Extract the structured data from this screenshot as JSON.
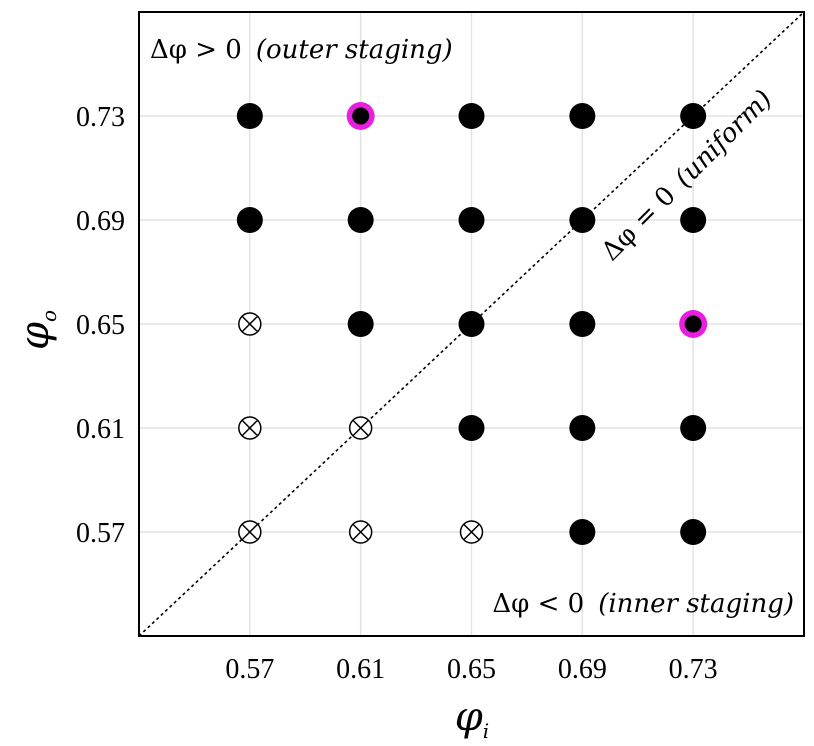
{
  "chart_data": {
    "type": "scatter",
    "xlabel": "φ",
    "xlabel_sub": "i",
    "ylabel": "φ",
    "ylabel_sub": "o",
    "xlim": [
      0.53,
      0.77
    ],
    "ylim": [
      0.53,
      0.77
    ],
    "xticks": [
      0.57,
      0.61,
      0.65,
      0.69,
      0.73
    ],
    "yticks": [
      0.57,
      0.61,
      0.65,
      0.69,
      0.73
    ],
    "xtick_labels": [
      "0.57",
      "0.61",
      "0.65",
      "0.69",
      "0.73"
    ],
    "ytick_labels": [
      "0.57",
      "0.61",
      "0.65",
      "0.69",
      "0.73"
    ],
    "grid": true,
    "points": [
      {
        "x": 0.57,
        "y": 0.73,
        "marker": "filled"
      },
      {
        "x": 0.61,
        "y": 0.73,
        "marker": "filled-highlight"
      },
      {
        "x": 0.65,
        "y": 0.73,
        "marker": "filled"
      },
      {
        "x": 0.69,
        "y": 0.73,
        "marker": "filled"
      },
      {
        "x": 0.73,
        "y": 0.73,
        "marker": "filled"
      },
      {
        "x": 0.57,
        "y": 0.69,
        "marker": "filled"
      },
      {
        "x": 0.61,
        "y": 0.69,
        "marker": "filled"
      },
      {
        "x": 0.65,
        "y": 0.69,
        "marker": "filled"
      },
      {
        "x": 0.69,
        "y": 0.69,
        "marker": "filled"
      },
      {
        "x": 0.73,
        "y": 0.69,
        "marker": "filled"
      },
      {
        "x": 0.57,
        "y": 0.65,
        "marker": "cross-circle"
      },
      {
        "x": 0.61,
        "y": 0.65,
        "marker": "filled"
      },
      {
        "x": 0.65,
        "y": 0.65,
        "marker": "filled"
      },
      {
        "x": 0.69,
        "y": 0.65,
        "marker": "filled"
      },
      {
        "x": 0.73,
        "y": 0.65,
        "marker": "filled-highlight"
      },
      {
        "x": 0.57,
        "y": 0.61,
        "marker": "cross-circle"
      },
      {
        "x": 0.61,
        "y": 0.61,
        "marker": "cross-circle"
      },
      {
        "x": 0.65,
        "y": 0.61,
        "marker": "filled"
      },
      {
        "x": 0.69,
        "y": 0.61,
        "marker": "filled"
      },
      {
        "x": 0.73,
        "y": 0.61,
        "marker": "filled"
      },
      {
        "x": 0.57,
        "y": 0.57,
        "marker": "cross-circle"
      },
      {
        "x": 0.61,
        "y": 0.57,
        "marker": "cross-circle"
      },
      {
        "x": 0.65,
        "y": 0.57,
        "marker": "cross-circle"
      },
      {
        "x": 0.69,
        "y": 0.57,
        "marker": "filled"
      },
      {
        "x": 0.73,
        "y": 0.57,
        "marker": "filled"
      }
    ],
    "diagonal": {
      "from": [
        0.53,
        0.53
      ],
      "to": [
        0.77,
        0.77
      ],
      "style": "dotted"
    },
    "annotations": {
      "top_left": {
        "math": "Δφ > 0",
        "paren": "(outer staging)"
      },
      "bottom_right": {
        "math": "Δφ < 0",
        "paren": "(inner staging)"
      },
      "diagonal": {
        "math": "Δφ = 0",
        "paren": "(uniform)"
      }
    },
    "colors": {
      "highlight": "#e81ee0",
      "marker": "#000000",
      "grid": "#e3e3e3"
    }
  }
}
